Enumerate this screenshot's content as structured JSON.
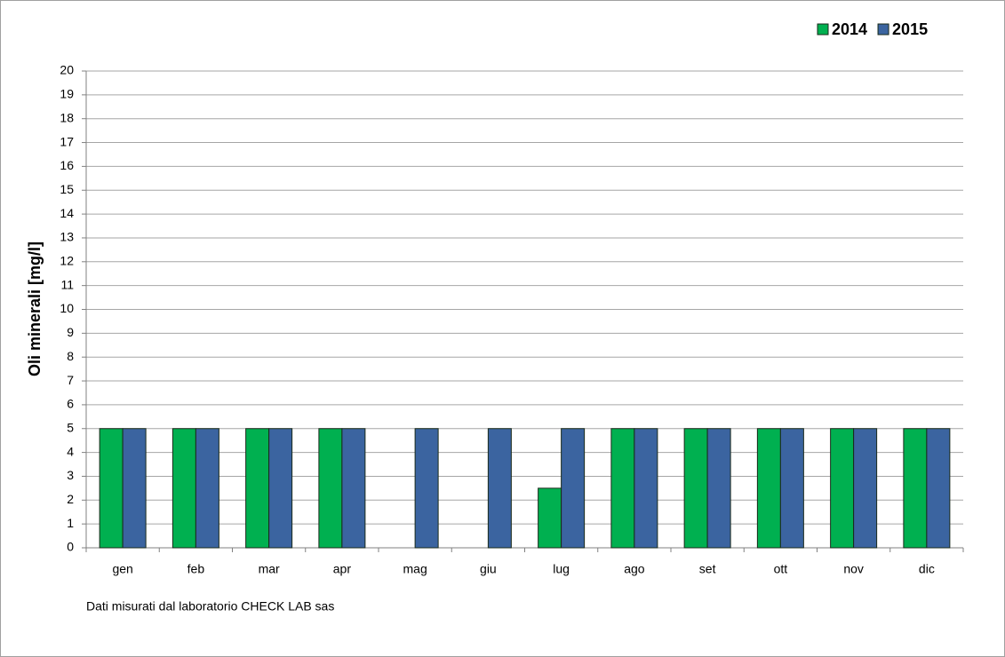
{
  "chart_data": {
    "type": "bar",
    "y_label": "Oli minerali [mg/l]",
    "note": "Dati misurati dal laboratorio CHECK LAB sas",
    "categories": [
      "gen",
      "feb",
      "mar",
      "apr",
      "mag",
      "giu",
      "lug",
      "ago",
      "set",
      "ott",
      "nov",
      "dic"
    ],
    "series": [
      {
        "name": "2014",
        "color": "#00b050",
        "values": [
          5,
          5,
          5,
          5,
          null,
          null,
          2.5,
          5,
          5,
          5,
          5,
          5
        ]
      },
      {
        "name": "2015",
        "color": "#3b64a0",
        "values": [
          5,
          5,
          5,
          5,
          5,
          5,
          5,
          5,
          5,
          5,
          5,
          5
        ]
      }
    ],
    "ylim": [
      0,
      20
    ],
    "yticks": [
      0,
      1,
      2,
      3,
      4,
      5,
      6,
      7,
      8,
      9,
      10,
      11,
      12,
      13,
      14,
      15,
      16,
      17,
      18,
      19,
      20
    ],
    "grid": true,
    "legend": "top-right"
  }
}
